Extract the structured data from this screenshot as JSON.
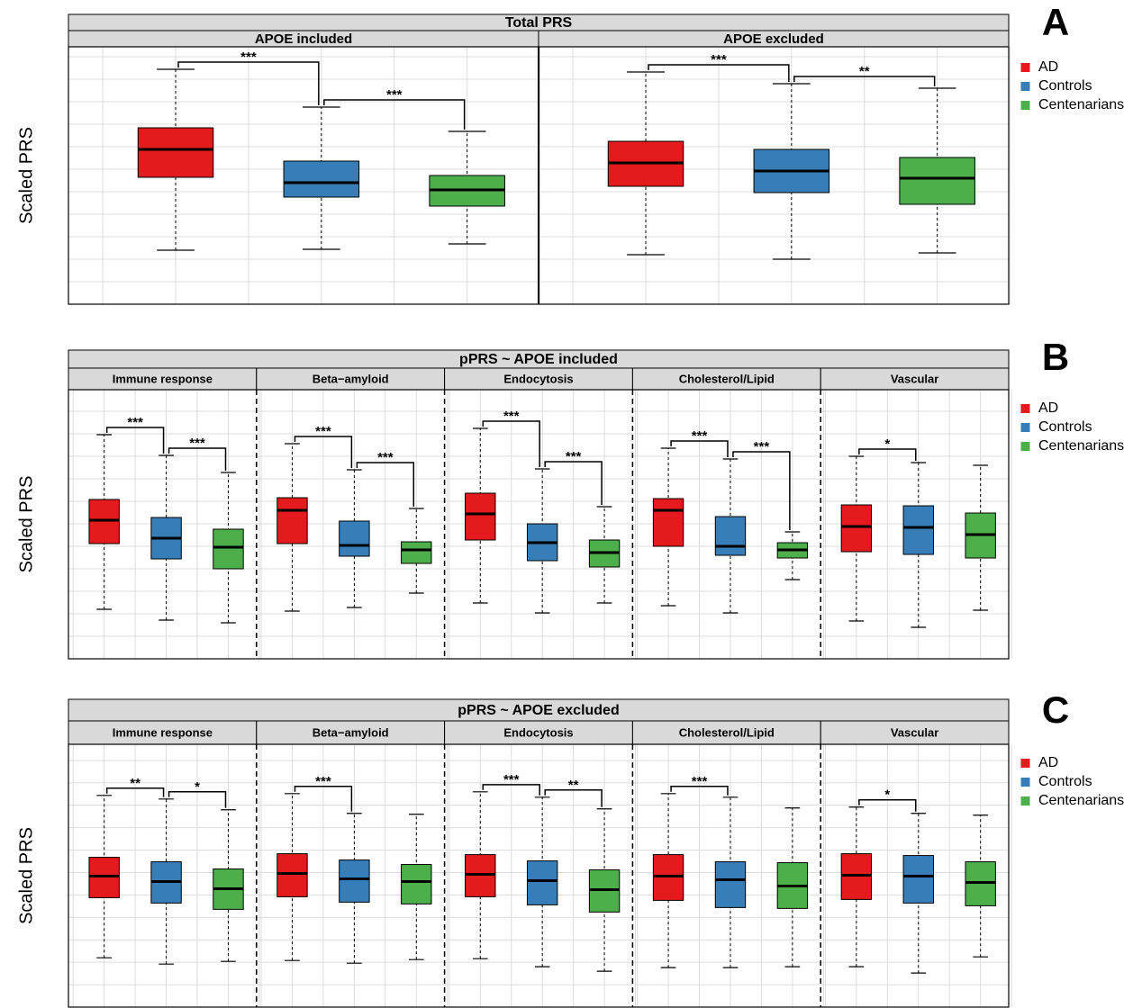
{
  "chart_data": [
    {
      "type": "box",
      "panel": "A",
      "title": "Total PRS",
      "ylabel": "Scaled PRS",
      "ylim": [
        0,
        286
      ],
      "yticks": [
        0,
        25,
        50,
        75,
        100,
        125,
        150,
        175,
        200,
        225,
        250,
        275
      ],
      "grid": true,
      "facet_separator": "solid",
      "series": [
        {
          "name": "AD",
          "color": "#e41a1c"
        },
        {
          "name": "Controls",
          "color": "#377eb8"
        },
        {
          "name": "Centenarians",
          "color": "#4daf4a"
        }
      ],
      "facets": [
        {
          "name": "APOE included",
          "boxes": [
            [
              60,
              141,
              172,
              196,
              261
            ],
            [
              61,
              119,
              135,
              159,
              219
            ],
            [
              67,
              109,
              127,
              143,
              192
            ]
          ],
          "significance": [
            {
              "pair": [
                0,
                1
              ],
              "label": "***"
            },
            {
              "pair": [
                1,
                2
              ],
              "label": "***"
            }
          ]
        },
        {
          "name": "APOE excluded",
          "boxes": [
            [
              55,
              131,
              157,
              181,
              258
            ],
            [
              50,
              124,
              148,
              172,
              245
            ],
            [
              57,
              111,
              140,
              163,
              240
            ]
          ],
          "significance": [
            {
              "pair": [
                0,
                1
              ],
              "label": "***"
            },
            {
              "pair": [
                1,
                2
              ],
              "label": "**"
            }
          ]
        }
      ]
    },
    {
      "type": "box",
      "panel": "B",
      "title": "pPRS ~ APOE included",
      "ylabel": "Scaled PRS",
      "ylim": [
        0,
        299
      ],
      "yticks": [
        0,
        25,
        50,
        75,
        100,
        125,
        150,
        175,
        200,
        225,
        250,
        275
      ],
      "grid": true,
      "facet_separator": "dashed",
      "series": [
        {
          "name": "AD",
          "color": "#e41a1c"
        },
        {
          "name": "Controls",
          "color": "#377eb8"
        },
        {
          "name": "Centenarians",
          "color": "#4daf4a"
        }
      ],
      "facets": [
        {
          "name": "Immune response",
          "boxes": [
            [
              55,
              128,
              154,
              177,
              249
            ],
            [
              43,
              111,
              134,
              157,
              226
            ],
            [
              40,
              100,
              124,
              144,
              207
            ]
          ],
          "significance": [
            {
              "pair": [
                0,
                1
              ],
              "label": "***"
            },
            {
              "pair": [
                1,
                2
              ],
              "label": "***"
            }
          ]
        },
        {
          "name": "Beta−amyloid",
          "boxes": [
            [
              53,
              128,
              165,
              179,
              239
            ],
            [
              57,
              114,
              126,
              153,
              210
            ],
            [
              73,
              106,
              121,
              130,
              167
            ]
          ],
          "significance": [
            {
              "pair": [
                0,
                1
              ],
              "label": "***"
            },
            {
              "pair": [
                1,
                2
              ],
              "label": "***"
            }
          ]
        },
        {
          "name": "Endocytosis",
          "boxes": [
            [
              62,
              132,
              161,
              184,
              256
            ],
            [
              51,
              109,
              129,
              150,
              211
            ],
            [
              62,
              102,
              118,
              132,
              169
            ]
          ],
          "significance": [
            {
              "pair": [
                0,
                1
              ],
              "label": "***"
            },
            {
              "pair": [
                1,
                2
              ],
              "label": "***"
            }
          ]
        },
        {
          "name": "Cholesterol/Lipid",
          "boxes": [
            [
              59,
              125,
              165,
              178,
              234
            ],
            [
              51,
              115,
              125,
              158,
              222
            ],
            [
              88,
              112,
              121,
              129,
              141
            ]
          ],
          "significance": [
            {
              "pair": [
                0,
                1
              ],
              "label": "***"
            },
            {
              "pair": [
                1,
                2
              ],
              "label": "***"
            }
          ]
        },
        {
          "name": "Vascular",
          "boxes": [
            [
              42,
              119,
              147,
              171,
              225
            ],
            [
              35,
              116,
              146,
              170,
              218
            ],
            [
              54,
              112,
              138,
              162,
              215
            ]
          ],
          "significance": [
            {
              "pair": [
                0,
                1
              ],
              "label": "*"
            }
          ]
        }
      ]
    },
    {
      "type": "box",
      "panel": "C",
      "title": "pPRS ~ APOE excluded",
      "ylabel": "Scaled PRS",
      "ylim": [
        0,
        293
      ],
      "yticks": [
        0,
        25,
        50,
        75,
        100,
        125,
        150,
        175,
        200,
        225,
        250,
        275
      ],
      "grid": true,
      "facet_separator": "dashed",
      "series": [
        {
          "name": "AD",
          "color": "#e41a1c"
        },
        {
          "name": "Controls",
          "color": "#377eb8"
        },
        {
          "name": "Centenarians",
          "color": "#4daf4a"
        }
      ],
      "facets": [
        {
          "name": "Immune response",
          "boxes": [
            [
              55,
              122,
              146,
              167,
              236
            ],
            [
              48,
              116,
              140,
              162,
              232
            ],
            [
              51,
              109,
              132,
              154,
              220
            ]
          ],
          "significance": [
            {
              "pair": [
                0,
                1
              ],
              "label": "**"
            },
            {
              "pair": [
                1,
                2
              ],
              "label": "*"
            }
          ]
        },
        {
          "name": "Beta−amyloid",
          "boxes": [
            [
              52,
              123,
              149,
              171,
              238
            ],
            [
              49,
              117,
              143,
              164,
              216
            ],
            [
              53,
              115,
              140,
              159,
              215
            ]
          ],
          "significance": [
            {
              "pair": [
                0,
                1
              ],
              "label": "***"
            }
          ]
        },
        {
          "name": "Endocytosis",
          "boxes": [
            [
              54,
              123,
              148,
              170,
              240
            ],
            [
              45,
              114,
              141,
              163,
              234
            ],
            [
              40,
              106,
              131,
              153,
              221
            ]
          ],
          "significance": [
            {
              "pair": [
                0,
                1
              ],
              "label": "***"
            },
            {
              "pair": [
                1,
                2
              ],
              "label": "**"
            }
          ]
        },
        {
          "name": "Cholesterol/Lipid",
          "boxes": [
            [
              44,
              119,
              146,
              170,
              238
            ],
            [
              44,
              111,
              142,
              162,
              234
            ],
            [
              45,
              110,
              135,
              161,
              222
            ]
          ],
          "significance": [
            {
              "pair": [
                0,
                1
              ],
              "label": "***"
            }
          ]
        },
        {
          "name": "Vascular",
          "boxes": [
            [
              45,
              120,
              147,
              171,
              223
            ],
            [
              38,
              116,
              146,
              169,
              216
            ],
            [
              56,
              113,
              139,
              162,
              214
            ]
          ],
          "significance": [
            {
              "pair": [
                0,
                1
              ],
              "label": "*"
            }
          ]
        }
      ]
    }
  ]
}
